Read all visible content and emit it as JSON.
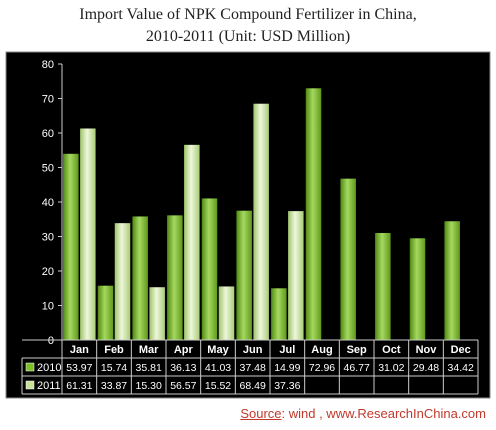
{
  "chart_data": {
    "type": "bar",
    "title_line1": "Import Value of NPK Compound Fertilizer in China,",
    "title_line2": "2010-2011 (Unit: USD Million)",
    "categories": [
      "Jan",
      "Feb",
      "Mar",
      "Apr",
      "May",
      "Jun",
      "Jul",
      "Aug",
      "Sep",
      "Oct",
      "Nov",
      "Dec"
    ],
    "series": [
      {
        "name": "2010",
        "values": [
          53.97,
          15.74,
          35.81,
          36.13,
          41.03,
          37.48,
          14.99,
          72.96,
          46.77,
          31.02,
          29.48,
          34.42
        ],
        "color": "#7fbf2a"
      },
      {
        "name": "2011",
        "values": [
          61.31,
          33.87,
          15.3,
          56.57,
          15.52,
          68.49,
          37.36,
          null,
          null,
          null,
          null,
          null
        ],
        "color": "#c8e29a"
      }
    ],
    "value_labels": [
      [
        "53.97",
        "15.74",
        "35.81",
        "36.13",
        "41.03",
        "37.48",
        "14.99",
        "72.96",
        "46.77",
        "31.02",
        "29.48",
        "34.42"
      ],
      [
        "61.31",
        "33.87",
        "15.30",
        "56.57",
        "15.52",
        "68.49",
        "37.36",
        "",
        "",
        "",
        "",
        ""
      ]
    ],
    "y_ticks": [
      "0",
      "10",
      "20",
      "30",
      "40",
      "50",
      "60",
      "70",
      "80"
    ],
    "ylim": [
      0,
      80
    ],
    "grid": false,
    "background": "#000000",
    "legend": "data-table"
  },
  "source": {
    "label": "Source",
    "text": ": wind , www.ResearchInChina.com"
  }
}
